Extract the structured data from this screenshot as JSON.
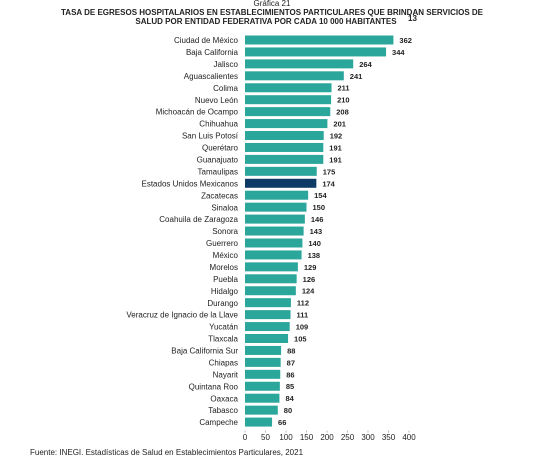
{
  "chart_data": {
    "type": "barh",
    "label": "Gráfica 21",
    "title": [
      "TASA DE EGRESOS HOSPITALARIOS EN ESTABLECIMIENTOS PARTICULARES QUE BRINDAN SERVICIOS DE",
      "SALUD POR ENTIDAD FEDERATIVA POR CADA 10 000 HABITANTES"
    ],
    "title_note": "13",
    "categories": [
      "Ciudad de México",
      "Baja California",
      "Jalisco",
      "Aguascalientes",
      "Colima",
      "Nuevo León",
      "Michoacán de Ocampo",
      "Chihuahua",
      "San Luis Potosí",
      "Querétaro",
      "Guanajuato",
      "Tamaulipas",
      "Estados Unidos Mexicanos",
      "Zacatecas",
      "Sinaloa",
      "Coahuila de Zaragoza",
      "Sonora",
      "Guerrero",
      "México",
      "Morelos",
      "Puebla",
      "Hidalgo",
      "Durango",
      "Veracruz de Ignacio de la Llave",
      "Yucatán",
      "Tlaxcala",
      "Baja California Sur",
      "Chiapas",
      "Nayarit",
      "Quintana Roo",
      "Oaxaca",
      "Tabasco",
      "Campeche"
    ],
    "values": [
      362,
      344,
      264,
      241,
      211,
      210,
      208,
      201,
      192,
      191,
      191,
      175,
      174,
      154,
      150,
      146,
      143,
      140,
      138,
      129,
      126,
      124,
      112,
      111,
      109,
      105,
      88,
      87,
      86,
      85,
      84,
      80,
      66
    ],
    "colors": [
      "#2ba69b",
      "#2ba69b",
      "#2ba69b",
      "#2ba69b",
      "#2ba69b",
      "#2ba69b",
      "#2ba69b",
      "#2ba69b",
      "#2ba69b",
      "#2ba69b",
      "#2ba69b",
      "#2ba69b",
      "#0d3b66",
      "#2ba69b",
      "#2ba69b",
      "#2ba69b",
      "#2ba69b",
      "#2ba69b",
      "#2ba69b",
      "#2ba69b",
      "#2ba69b",
      "#2ba69b",
      "#2ba69b",
      "#2ba69b",
      "#2ba69b",
      "#2ba69b",
      "#2ba69b",
      "#2ba69b",
      "#2ba69b",
      "#2ba69b",
      "#2ba69b",
      "#2ba69b",
      "#2ba69b"
    ],
    "xlim": [
      0,
      400
    ],
    "xticks": [
      0,
      50,
      100,
      150,
      200,
      250,
      300,
      350,
      400
    ],
    "source": "Fuente: INEGI. Estadísticas de Salud en Establecimientos Particulares, 2021"
  }
}
